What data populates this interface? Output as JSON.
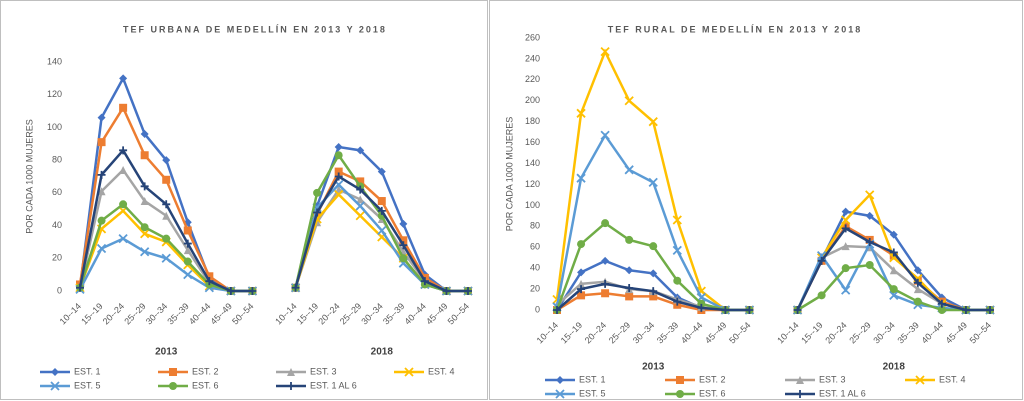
{
  "chart_data": [
    {
      "type": "line",
      "title": "TEF URBANA DE MEDELLÍN EN 2013 Y 2018",
      "y_label": "POR CADA 1000 MUJERES",
      "categories": [
        "10--14",
        "15--19",
        "20--24",
        "25--29",
        "30--34",
        "35--39",
        "40--44",
        "45--49",
        "50--54",
        null,
        "10--14",
        "15--19",
        "20--24",
        "25--29",
        "30--34",
        "35--39",
        "40--44",
        "45--49",
        "50--54"
      ],
      "groups": [
        "2013",
        "2018"
      ],
      "ylim": [
        0,
        140
      ],
      "yticks": [
        0,
        20,
        40,
        60,
        80,
        100,
        120,
        140
      ],
      "series": [
        {
          "name": "EST. 1",
          "color": "#4472c4",
          "marker": "diamond",
          "values": [
            2,
            106,
            130,
            96,
            80,
            42,
            8,
            0,
            0,
            null,
            2,
            52,
            88,
            86,
            73,
            41,
            10,
            0,
            0
          ]
        },
        {
          "name": "EST. 2",
          "color": "#ed7d31",
          "marker": "square",
          "values": [
            4,
            91,
            112,
            83,
            68,
            37,
            9,
            0,
            0,
            null,
            2,
            47,
            73,
            67,
            55,
            31,
            8,
            0,
            0
          ]
        },
        {
          "name": "EST. 3",
          "color": "#a5a5a5",
          "marker": "triangle",
          "values": [
            2,
            61,
            74,
            55,
            46,
            25,
            5,
            0,
            0,
            null,
            2,
            42,
            62,
            56,
            44,
            24,
            6,
            0,
            0
          ]
        },
        {
          "name": "EST. 4",
          "color": "#ffc000",
          "marker": "x",
          "values": [
            2,
            38,
            49,
            35,
            30,
            16,
            3,
            0,
            0,
            null,
            2,
            44,
            59,
            46,
            33,
            20,
            4,
            0,
            0
          ]
        },
        {
          "name": "EST. 5",
          "color": "#5b9bd5",
          "marker": "x",
          "values": [
            1,
            26,
            32,
            24,
            20,
            10,
            2,
            0,
            0,
            null,
            2,
            51,
            65,
            52,
            37,
            17,
            4,
            0,
            0
          ]
        },
        {
          "name": "EST. 6",
          "color": "#70ad47",
          "marker": "circle",
          "values": [
            2,
            43,
            53,
            39,
            32,
            18,
            4,
            0,
            0,
            null,
            2,
            60,
            83,
            64,
            46,
            20,
            4,
            0,
            0
          ]
        },
        {
          "name": "EST. 1 AL 6",
          "color": "#264478",
          "marker": "plus",
          "values": [
            2,
            71,
            86,
            64,
            53,
            29,
            6,
            0,
            0,
            null,
            2,
            48,
            70,
            62,
            49,
            28,
            6,
            0,
            0
          ]
        }
      ]
    },
    {
      "type": "line",
      "title": "TEF RURAL DE MEDELLÍN EN 2013 Y 2018",
      "y_label": "POR CADA 1000 MUJERES",
      "categories": [
        "10--14",
        "15--19",
        "20--24",
        "25--29",
        "30--34",
        "35--39",
        "40--44",
        "45--49",
        "50--54",
        null,
        "10--14",
        "15--19",
        "20--24",
        "25--29",
        "30--34",
        "35--39",
        "40--44",
        "45--49",
        "50--54"
      ],
      "groups": [
        "2013",
        "2018"
      ],
      "ylim": [
        0,
        260
      ],
      "yticks": [
        0,
        20,
        40,
        60,
        80,
        100,
        120,
        140,
        160,
        180,
        200,
        220,
        240,
        260
      ],
      "series": [
        {
          "name": "EST. 1",
          "color": "#4472c4",
          "marker": "diamond",
          "values": [
            0,
            36,
            47,
            38,
            35,
            12,
            2,
            0,
            0,
            null,
            0,
            48,
            94,
            90,
            72,
            38,
            12,
            0,
            0
          ]
        },
        {
          "name": "EST. 2",
          "color": "#ed7d31",
          "marker": "square",
          "values": [
            0,
            14,
            16,
            13,
            13,
            5,
            0,
            0,
            0,
            null,
            0,
            47,
            80,
            67,
            52,
            28,
            8,
            0,
            0
          ]
        },
        {
          "name": "EST. 3",
          "color": "#a5a5a5",
          "marker": "triangle",
          "values": [
            5,
            25,
            27,
            20,
            18,
            10,
            3,
            0,
            0,
            null,
            0,
            50,
            61,
            60,
            38,
            20,
            6,
            0,
            0
          ]
        },
        {
          "name": "EST. 4",
          "color": "#ffc000",
          "marker": "x",
          "values": [
            10,
            188,
            247,
            200,
            180,
            86,
            18,
            0,
            0,
            null,
            0,
            50,
            86,
            110,
            50,
            30,
            6,
            0,
            0
          ]
        },
        {
          "name": "EST. 5",
          "color": "#5b9bd5",
          "marker": "x",
          "values": [
            3,
            126,
            167,
            134,
            122,
            57,
            12,
            0,
            0,
            null,
            0,
            52,
            19,
            63,
            14,
            5,
            2,
            0,
            0
          ]
        },
        {
          "name": "EST. 6",
          "color": "#70ad47",
          "marker": "circle",
          "values": [
            0,
            63,
            83,
            67,
            61,
            28,
            6,
            0,
            0,
            null,
            0,
            14,
            40,
            43,
            20,
            8,
            0,
            0,
            0
          ]
        },
        {
          "name": "EST. 1 AL 6",
          "color": "#264478",
          "marker": "plus",
          "values": [
            0,
            20,
            25,
            21,
            18,
            8,
            2,
            0,
            0,
            null,
            0,
            47,
            78,
            65,
            55,
            26,
            6,
            0,
            0
          ]
        }
      ]
    }
  ]
}
